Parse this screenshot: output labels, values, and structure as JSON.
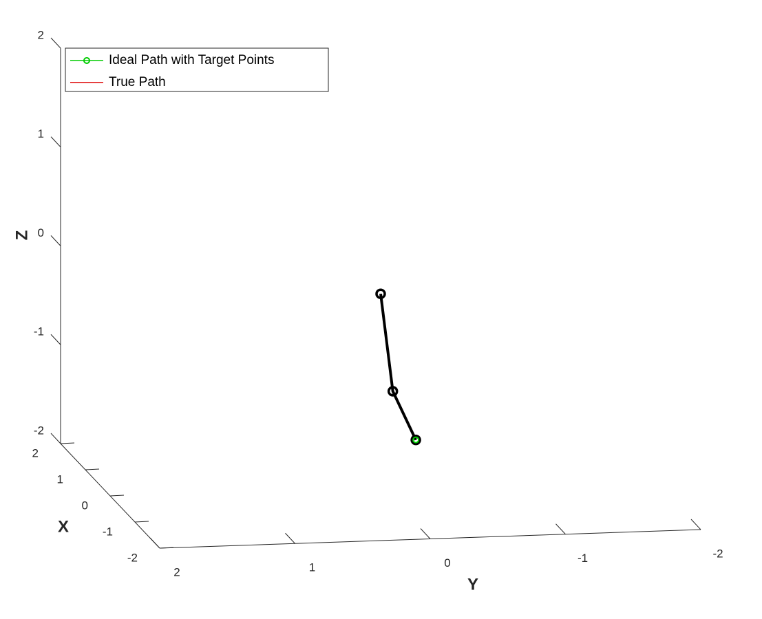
{
  "chart_data": {
    "type": "line3d",
    "xlabel": "X",
    "ylabel": "Y",
    "zlabel": "Z",
    "xlim": [
      -2,
      2
    ],
    "ylim": [
      -2,
      2
    ],
    "zlim": [
      -2,
      2
    ],
    "xticks": [
      -2,
      -1,
      0,
      1,
      2
    ],
    "yticks": [
      -2,
      -1,
      0,
      1,
      2
    ],
    "zticks": [
      -2,
      -1,
      0,
      1,
      2
    ],
    "legend": "upper left",
    "series": [
      {
        "name": "Ideal Path with Target Points",
        "color": "#00cc00",
        "marker": "o",
        "x": [
          0
        ],
        "y": [
          -0.26
        ],
        "z": [
          -1.54
        ]
      },
      {
        "name": "True Path",
        "color": "#dd0000",
        "x": [
          0
        ],
        "y": [
          -0.26
        ],
        "z": [
          -1.54
        ]
      },
      {
        "color": "#000000",
        "marker": "o",
        "x": [
          0,
          0,
          0
        ],
        "y": [
          0,
          -0.09,
          -0.26
        ],
        "z": [
          -0.05,
          -1.04,
          -1.54
        ]
      }
    ]
  }
}
